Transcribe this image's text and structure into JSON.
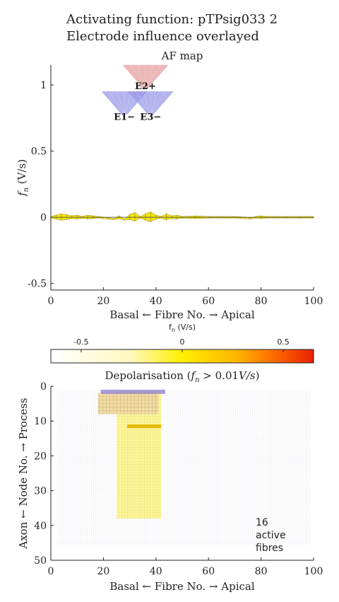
{
  "figure": {
    "title_line1": "Activating function: pTPsig033 2",
    "title_line2": "Electrode influence overlayed"
  },
  "chart_data": [
    {
      "type": "line",
      "title": "AF map",
      "xlabel": "Basal ← Fibre No. → Apical",
      "ylabel": "f_n (V/s)",
      "xlim": [
        0,
        100
      ],
      "ylim": [
        -0.55,
        1.15
      ],
      "xticks": [
        "0",
        "20",
        "40",
        "60",
        "80",
        "100"
      ],
      "yticks": [
        "-0.5",
        "0",
        "0.5",
        "1"
      ],
      "series_color": "#f2e200",
      "series": [
        {
          "x": [
            0,
            2,
            4,
            6,
            8,
            10,
            12,
            14,
            16,
            18,
            20,
            22,
            24,
            26,
            28,
            30,
            32,
            34,
            36,
            38,
            40,
            42,
            44,
            46,
            48,
            50,
            55,
            60,
            65,
            70,
            74,
            76,
            78,
            80,
            82,
            85,
            90,
            95,
            100
          ],
          "values": [
            0.0,
            0.01,
            0.02,
            0.015,
            0.005,
            0.01,
            0.0,
            0.01,
            0.005,
            0.0,
            -0.005,
            -0.01,
            -0.015,
            0.005,
            -0.02,
            0.015,
            0.03,
            0.0,
            0.02,
            0.035,
            0.01,
            0.0,
            0.02,
            0.005,
            0.01,
            0.0,
            0.005,
            0.0,
            0.0,
            0.0,
            -0.005,
            -0.01,
            0.0,
            0.005,
            0.0,
            0.0,
            0.0,
            0.0,
            0.0
          ]
        }
      ],
      "electrodes": [
        {
          "label": "E2+",
          "x": 36,
          "y": 1.15,
          "color": "#e8a0a0"
        },
        {
          "label": "E1−",
          "x": 28,
          "y": 0.95,
          "color": "#9a9ae8"
        },
        {
          "label": "E3−",
          "x": 38,
          "y": 0.95,
          "color": "#9a9ae8"
        }
      ]
    },
    {
      "type": "heatmap",
      "colorbar_label": "f_n (V/s)",
      "colorbar_ticks": [
        "-0.5",
        "0",
        "0.5"
      ],
      "colorbar_range": [
        -0.65,
        0.65
      ],
      "colorbar_colors": [
        "#ffffff",
        "#fff8c0",
        "#ffee00",
        "#ffb800",
        "#ff6a00",
        "#e82000"
      ],
      "title": "Depolarisation (f_n > 0.01V/s)",
      "xlabel": "Basal ← Fibre No. → Apical",
      "ylabel": "Axon ← Node No. → Process",
      "xlim": [
        0,
        100
      ],
      "ylim": [
        0,
        50
      ],
      "xticks": [
        "0",
        "20",
        "40",
        "60",
        "80",
        "100"
      ],
      "yticks": [
        "0",
        "10",
        "20",
        "30",
        "40",
        "50"
      ],
      "active_fibre_range": [
        25,
        42
      ],
      "active_node_depth": 38,
      "annotation": "16 active fibres",
      "annotation_lines": [
        "16",
        "active",
        "fibres"
      ]
    }
  ]
}
